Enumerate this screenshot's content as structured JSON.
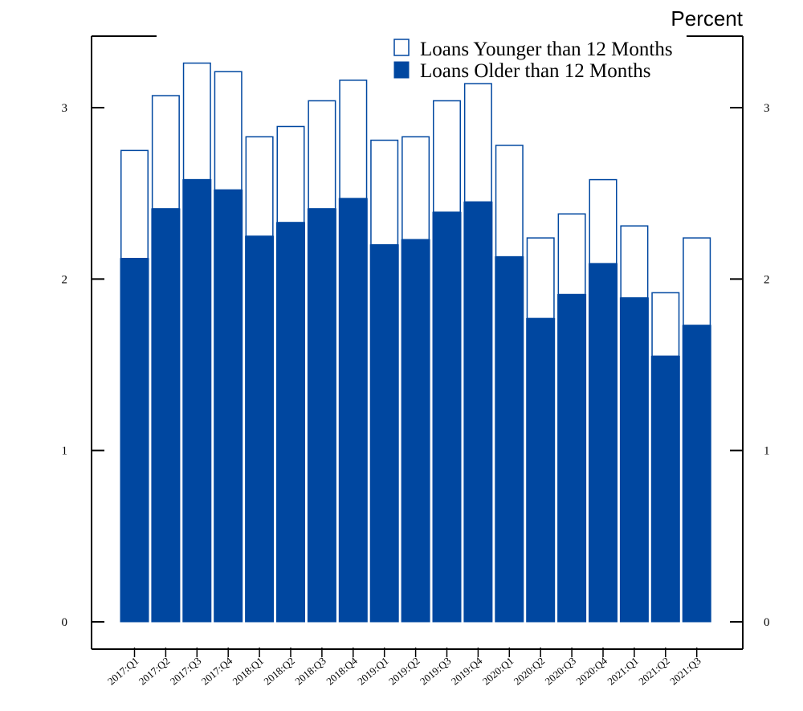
{
  "chart_data": {
    "type": "bar",
    "stacked": true,
    "unit_label": "Percent",
    "categories": [
      "2017:Q1",
      "2017:Q2",
      "2017:Q3",
      "2017:Q4",
      "2018:Q1",
      "2018:Q2",
      "2018:Q3",
      "2018:Q4",
      "2019:Q1",
      "2019:Q2",
      "2019:Q3",
      "2019:Q4",
      "2020:Q1",
      "2020:Q2",
      "2020:Q3",
      "2020:Q4",
      "2021:Q1",
      "2021:Q2",
      "2021:Q3"
    ],
    "series": [
      {
        "name": "Loans Older than 12 Months",
        "color": "#0047a0",
        "fill": "solid",
        "values": [
          2.12,
          2.41,
          2.58,
          2.52,
          2.25,
          2.33,
          2.41,
          2.47,
          2.2,
          2.23,
          2.39,
          2.45,
          2.13,
          1.77,
          1.91,
          2.09,
          1.89,
          1.55,
          1.73
        ]
      },
      {
        "name": "Loans Younger than 12 Months",
        "color": "#0047a0",
        "fill": "outline",
        "values": [
          0.63,
          0.66,
          0.68,
          0.69,
          0.58,
          0.56,
          0.63,
          0.69,
          0.61,
          0.6,
          0.65,
          0.69,
          0.65,
          0.47,
          0.47,
          0.49,
          0.42,
          0.37,
          0.51
        ]
      }
    ],
    "ylim": [
      0,
      3.35
    ],
    "yticks": [
      0,
      1,
      2,
      3
    ],
    "legend_position": "top-right",
    "grid": false
  }
}
